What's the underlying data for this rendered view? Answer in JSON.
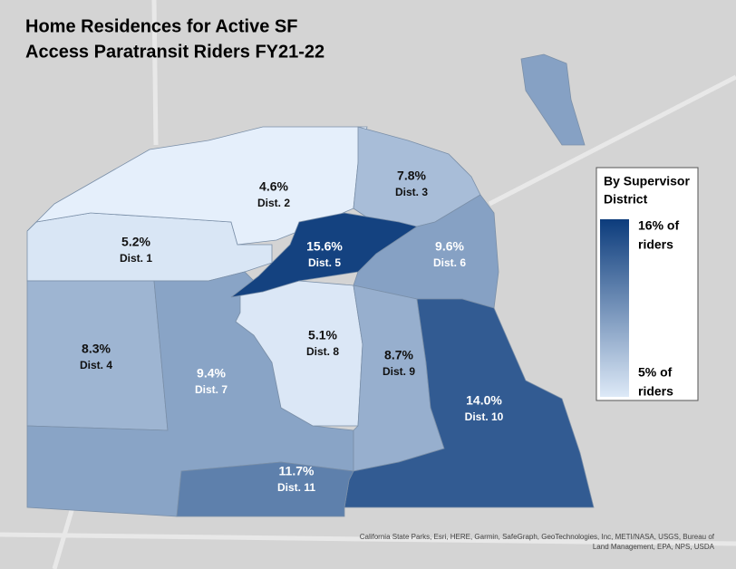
{
  "title": [
    "Home Residences for Active SF",
    "Access Paratransit Riders FY21-22"
  ],
  "districts": [
    {
      "label": "Dist. 1",
      "value": 5.2,
      "value_label": "5.2%"
    },
    {
      "label": "Dist. 2",
      "value": 4.6,
      "value_label": "4.6%"
    },
    {
      "label": "Dist. 3",
      "value": 7.8,
      "value_label": "7.8%"
    },
    {
      "label": "Dist. 4",
      "value": 8.3,
      "value_label": "8.3%"
    },
    {
      "label": "Dist. 5",
      "value": 15.6,
      "value_label": "15.6%"
    },
    {
      "label": "Dist. 6",
      "value": 9.6,
      "value_label": "9.6%"
    },
    {
      "label": "Dist. 7",
      "value": 9.4,
      "value_label": "9.4%"
    },
    {
      "label": "Dist. 8",
      "value": 5.1,
      "value_label": "5.1%"
    },
    {
      "label": "Dist. 9",
      "value": 8.7,
      "value_label": "8.7%"
    },
    {
      "label": "Dist. 10",
      "value": 14.0,
      "value_label": "14.0%"
    },
    {
      "label": "Dist. 11",
      "value": 11.7,
      "value_label": "11.7%"
    }
  ],
  "legend": {
    "title": [
      "By Supervisor",
      "District"
    ],
    "max": 16,
    "max_label": [
      "16% of",
      "riders"
    ],
    "min": 5,
    "min_label": [
      "5% of",
      "riders"
    ],
    "colors": [
      "#dde9f7",
      "#0c3c7c"
    ]
  },
  "attribution": [
    "California State Parks, Esri, HERE, Garmin, SafeGraph, GeoTechnologies, Inc, METI/NASA, USGS, Bureau of",
    "Land Management, EPA, NPS, USDA"
  ]
}
